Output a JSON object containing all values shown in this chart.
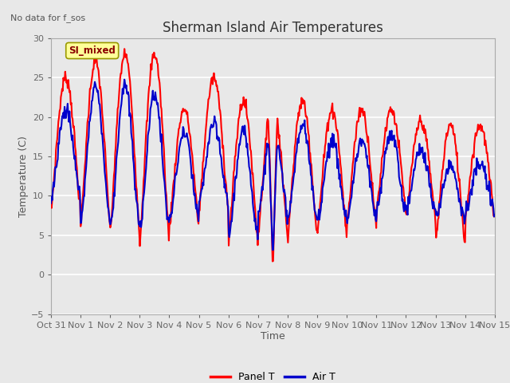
{
  "title": "Sherman Island Air Temperatures",
  "subtitle": "No data for f_sos",
  "xlabel": "Time",
  "ylabel": "Temperature (C)",
  "legend_label": "SI_mixed",
  "legend_text_color": "#8B0000",
  "legend_bg": "#FFFF99",
  "legend_border": "#999900",
  "panel_t_color": "#FF0000",
  "air_t_color": "#0000CC",
  "panel_t_label": "Panel T",
  "air_t_label": "Air T",
  "ylim": [
    -5,
    30
  ],
  "yticks": [
    -5,
    0,
    5,
    10,
    15,
    20,
    25,
    30
  ],
  "bg_color": "#E8E8E8",
  "plot_bg_color": "#E8E8E8",
  "grid_color": "#FFFFFF",
  "title_fontsize": 12,
  "axis_label_fontsize": 9,
  "tick_fontsize": 8,
  "line_width": 1.5,
  "xtick_labels": [
    "Oct 31",
    "Nov 1",
    "Nov 2",
    "Nov 3",
    "Nov 4",
    "Nov 5",
    "Nov 6",
    "Nov 7",
    "Nov 8",
    "Nov 9",
    "Nov 10",
    "Nov 11",
    "Nov 12",
    "Nov 13",
    "Nov 14",
    "Nov 15"
  ]
}
